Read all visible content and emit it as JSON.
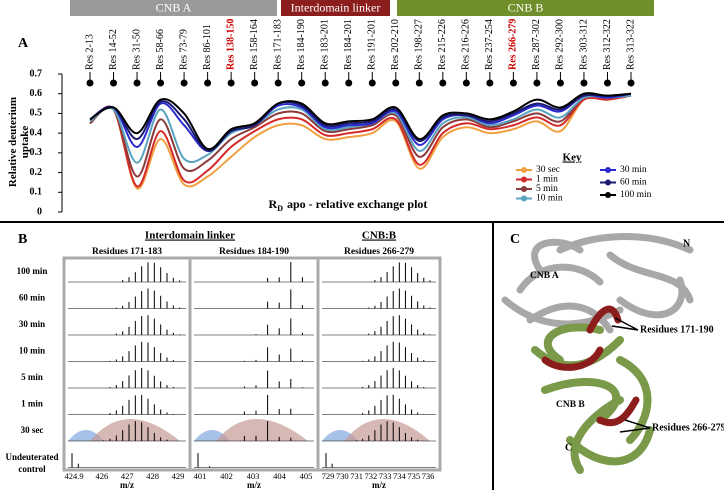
{
  "domain_bars": [
    {
      "name": "CNB A",
      "color": "#9a9a9a"
    },
    {
      "name": "Interdomain linker",
      "color": "#8b1d1d"
    },
    {
      "name": "CNB B",
      "color": "#6e8f2a"
    }
  ],
  "panel_labels": [
    "A",
    "B",
    "C"
  ],
  "chart_data": {
    "type": "line",
    "ylabel": "Relative deuterium uptake",
    "xlabel": {
      "symbol": "R",
      "subscript": "D",
      "text": "apo - relative exchange plot"
    },
    "categories": [
      "Res 2-13",
      "Res 14-52",
      "Res 31-50",
      "Res 58-66",
      "Res 73-79",
      "Res 86-101",
      "Res 138-150",
      "Res 158-164",
      "Res 171-183",
      "Res 184-190",
      "Res 183-201",
      "Res 184-201",
      "Res 191-201",
      "Res 202-210",
      "Res 198-227",
      "Res 215-226",
      "Res 216-226",
      "Res 237-254",
      "Res 266-279",
      "Res 287-302",
      "Res 292-300",
      "Res 303-312",
      "Res 312-322",
      "Res 313-322"
    ],
    "category_colors": [
      "#000000",
      "#000000",
      "#000000",
      "#000000",
      "#000000",
      "#000000",
      "#cc0000",
      "#000000",
      "#000000",
      "#000000",
      "#000000",
      "#000000",
      "#000000",
      "#000000",
      "#000000",
      "#000000",
      "#000000",
      "#000000",
      "#cc0000",
      "#000000",
      "#000000",
      "#000000",
      "#000000",
      "#000000"
    ],
    "ylim": [
      0,
      0.7
    ],
    "yticks": [
      0,
      0.1,
      0.2,
      0.3,
      0.4,
      0.5,
      0.6,
      0.7
    ],
    "legend_title": "Key",
    "series": [
      {
        "name": "30 sec",
        "color": "#f0a040",
        "values": [
          0.45,
          0.52,
          0.12,
          0.37,
          0.14,
          0.18,
          0.28,
          0.38,
          0.44,
          0.44,
          0.37,
          0.38,
          0.4,
          0.46,
          0.22,
          0.38,
          0.43,
          0.4,
          0.42,
          0.46,
          0.41,
          0.57,
          0.57,
          0.59
        ]
      },
      {
        "name": "1 min",
        "color": "#d42a2a",
        "values": [
          0.45,
          0.52,
          0.13,
          0.41,
          0.16,
          0.21,
          0.33,
          0.41,
          0.47,
          0.47,
          0.39,
          0.4,
          0.42,
          0.47,
          0.24,
          0.4,
          0.45,
          0.42,
          0.44,
          0.48,
          0.44,
          0.57,
          0.57,
          0.59
        ]
      },
      {
        "name": "5 min",
        "color": "#8a3a3a",
        "values": [
          0.45,
          0.52,
          0.18,
          0.47,
          0.22,
          0.26,
          0.37,
          0.43,
          0.5,
          0.5,
          0.41,
          0.42,
          0.44,
          0.49,
          0.28,
          0.43,
          0.47,
          0.43,
          0.46,
          0.5,
          0.46,
          0.58,
          0.58,
          0.59
        ]
      },
      {
        "name": "10 min",
        "color": "#5aa3c0",
        "values": [
          0.46,
          0.52,
          0.25,
          0.52,
          0.27,
          0.29,
          0.4,
          0.44,
          0.52,
          0.52,
          0.42,
          0.43,
          0.45,
          0.5,
          0.31,
          0.45,
          0.48,
          0.44,
          0.47,
          0.52,
          0.48,
          0.58,
          0.58,
          0.59
        ]
      },
      {
        "name": "30 min",
        "color": "#2a2ad0",
        "values": [
          0.47,
          0.53,
          0.33,
          0.55,
          0.44,
          0.31,
          0.41,
          0.44,
          0.54,
          0.53,
          0.43,
          0.44,
          0.45,
          0.51,
          0.34,
          0.47,
          0.49,
          0.45,
          0.49,
          0.54,
          0.51,
          0.59,
          0.58,
          0.6
        ]
      },
      {
        "name": "60 min",
        "color": "#1a1a70",
        "values": [
          0.47,
          0.53,
          0.37,
          0.56,
          0.47,
          0.31,
          0.41,
          0.44,
          0.55,
          0.54,
          0.44,
          0.45,
          0.46,
          0.52,
          0.36,
          0.48,
          0.49,
          0.46,
          0.5,
          0.55,
          0.52,
          0.59,
          0.59,
          0.6
        ]
      },
      {
        "name": "100 min",
        "color": "#000000",
        "values": [
          0.47,
          0.53,
          0.4,
          0.57,
          0.5,
          0.32,
          0.42,
          0.45,
          0.55,
          0.55,
          0.45,
          0.46,
          0.47,
          0.53,
          0.37,
          0.49,
          0.5,
          0.47,
          0.51,
          0.57,
          0.53,
          0.6,
          0.59,
          0.6
        ]
      }
    ]
  },
  "panel_b": {
    "group_titles": [
      "Interdomain linker",
      "CNB:B"
    ],
    "row_labels": [
      "100 min",
      "60 min",
      "30 min",
      "10 min",
      "5 min",
      "1 min",
      "30 sec",
      "Undeuterated control"
    ],
    "axis_label": "m/z",
    "spectra": [
      {
        "title": "Residues 171-183",
        "xticks": [
          424.9,
          426,
          427,
          428,
          429
        ]
      },
      {
        "title": "Residues 184-190",
        "xticks": [
          401,
          402,
          403,
          404,
          405
        ]
      },
      {
        "title": "Residues 266-279",
        "xticks": [
          729,
          730,
          731,
          732,
          733,
          734,
          735,
          736
        ]
      }
    ]
  },
  "panel_c": {
    "labels": {
      "n_term": "N",
      "c_term": "C",
      "cnb_a": "CNB A",
      "cnb_b": "CNB B",
      "region1": "Residues 171-190",
      "region2": "Residues 266-279"
    }
  }
}
